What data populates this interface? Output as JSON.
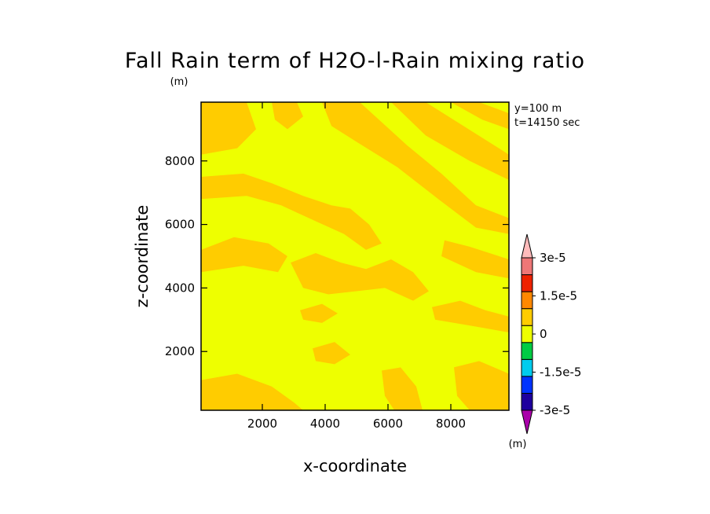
{
  "chart_data": {
    "type": "heatmap",
    "title": "Fall Rain term of H2O-l-Rain mixing ratio",
    "title_unit": "(m)",
    "xlabel": "x-coordinate",
    "ylabel": "z-coordinate",
    "xlim": [
      50,
      9850
    ],
    "ylim": [
      150,
      9850
    ],
    "xticks": [
      2000,
      4000,
      6000,
      8000
    ],
    "yticks": [
      2000,
      4000,
      6000,
      8000
    ],
    "annotations": [
      "y=100 m",
      "t=14150 sec"
    ],
    "field_colors": {
      "zero_band": "#eeff00",
      "slightly_positive": "#ffcc00"
    },
    "colorbar": {
      "unit": "(m)",
      "levels": [
        -3e-05,
        -2.25e-05,
        -1.5e-05,
        -7.5e-06,
        0,
        7.5e-06,
        1.5e-05,
        2.25e-05,
        3e-05
      ],
      "labels": [
        {
          "value": 3e-05,
          "text": "3e-5"
        },
        {
          "value": 1.5e-05,
          "text": "1.5e-5"
        },
        {
          "value": 0,
          "text": "0"
        },
        {
          "value": -1.5e-05,
          "text": "-1.5e-5"
        },
        {
          "value": -3e-05,
          "text": "-3e-5"
        }
      ],
      "colors": [
        "#aa00aa",
        "#1e009e",
        "#0033ff",
        "#00ccee",
        "#00cc44",
        "#eeff00",
        "#ffcc00",
        "#ff8800",
        "#ee2200",
        "#ee7777",
        "#ffbbbb"
      ]
    },
    "bands": [
      {
        "pts": [
          [
            50,
            9850
          ],
          [
            1500,
            9850
          ],
          [
            1800,
            9000
          ],
          [
            1200,
            8400
          ],
          [
            50,
            8200
          ]
        ]
      },
      {
        "pts": [
          [
            2300,
            9850
          ],
          [
            3100,
            9850
          ],
          [
            3300,
            9400
          ],
          [
            2800,
            9000
          ],
          [
            2400,
            9300
          ]
        ]
      },
      {
        "pts": [
          [
            3900,
            9850
          ],
          [
            5100,
            9850
          ],
          [
            6600,
            8500
          ],
          [
            7700,
            7600
          ],
          [
            8800,
            6600
          ],
          [
            9850,
            6200
          ],
          [
            9850,
            5700
          ],
          [
            8800,
            5900
          ],
          [
            7600,
            6800
          ],
          [
            6300,
            7800
          ],
          [
            5000,
            8600
          ],
          [
            4200,
            9100
          ]
        ]
      },
      {
        "pts": [
          [
            6100,
            9850
          ],
          [
            7200,
            9850
          ],
          [
            9850,
            8200
          ],
          [
            9850,
            7400
          ],
          [
            8600,
            8000
          ],
          [
            7200,
            8800
          ]
        ]
      },
      {
        "pts": [
          [
            8000,
            9850
          ],
          [
            8900,
            9850
          ],
          [
            9850,
            9500
          ],
          [
            9850,
            9000
          ],
          [
            9000,
            9300
          ]
        ]
      },
      {
        "pts": [
          [
            50,
            7500
          ],
          [
            1400,
            7600
          ],
          [
            2300,
            7300
          ],
          [
            3300,
            6900
          ],
          [
            4200,
            6600
          ],
          [
            4800,
            6500
          ],
          [
            5400,
            6000
          ],
          [
            5800,
            5400
          ],
          [
            5300,
            5200
          ],
          [
            4600,
            5700
          ],
          [
            3700,
            6100
          ],
          [
            2600,
            6600
          ],
          [
            1500,
            6900
          ],
          [
            50,
            6800
          ]
        ]
      },
      {
        "pts": [
          [
            50,
            5200
          ],
          [
            1100,
            5600
          ],
          [
            2200,
            5400
          ],
          [
            2800,
            5000
          ],
          [
            2500,
            4500
          ],
          [
            1400,
            4700
          ],
          [
            50,
            4500
          ]
        ]
      },
      {
        "pts": [
          [
            2900,
            4800
          ],
          [
            3700,
            5100
          ],
          [
            4500,
            4800
          ],
          [
            5300,
            4600
          ],
          [
            6100,
            4900
          ],
          [
            6800,
            4500
          ],
          [
            7300,
            3900
          ],
          [
            6800,
            3600
          ],
          [
            5900,
            4000
          ],
          [
            5000,
            3900
          ],
          [
            4100,
            3800
          ],
          [
            3300,
            4000
          ]
        ]
      },
      {
        "pts": [
          [
            7800,
            5500
          ],
          [
            8600,
            5300
          ],
          [
            9850,
            4900
          ],
          [
            9850,
            4300
          ],
          [
            8800,
            4500
          ],
          [
            7700,
            5000
          ]
        ]
      },
      {
        "pts": [
          [
            7400,
            3400
          ],
          [
            8300,
            3600
          ],
          [
            9100,
            3300
          ],
          [
            9850,
            3100
          ],
          [
            9850,
            2600
          ],
          [
            8700,
            2800
          ],
          [
            7500,
            3000
          ]
        ]
      },
      {
        "pts": [
          [
            50,
            1100
          ],
          [
            1200,
            1300
          ],
          [
            2300,
            900
          ],
          [
            3000,
            400
          ],
          [
            3300,
            150
          ],
          [
            50,
            150
          ]
        ]
      },
      {
        "pts": [
          [
            3600,
            2100
          ],
          [
            4300,
            2300
          ],
          [
            4800,
            1900
          ],
          [
            4300,
            1600
          ],
          [
            3700,
            1700
          ]
        ]
      },
      {
        "pts": [
          [
            5800,
            1400
          ],
          [
            6400,
            1500
          ],
          [
            6900,
            900
          ],
          [
            7100,
            150
          ],
          [
            6200,
            150
          ],
          [
            5900,
            600
          ]
        ]
      },
      {
        "pts": [
          [
            8100,
            1500
          ],
          [
            8900,
            1700
          ],
          [
            9850,
            1300
          ],
          [
            9850,
            150
          ],
          [
            8600,
            150
          ],
          [
            8200,
            600
          ]
        ]
      },
      {
        "pts": [
          [
            3200,
            3300
          ],
          [
            3900,
            3500
          ],
          [
            4400,
            3200
          ],
          [
            3900,
            2900
          ],
          [
            3300,
            3000
          ]
        ]
      }
    ]
  }
}
